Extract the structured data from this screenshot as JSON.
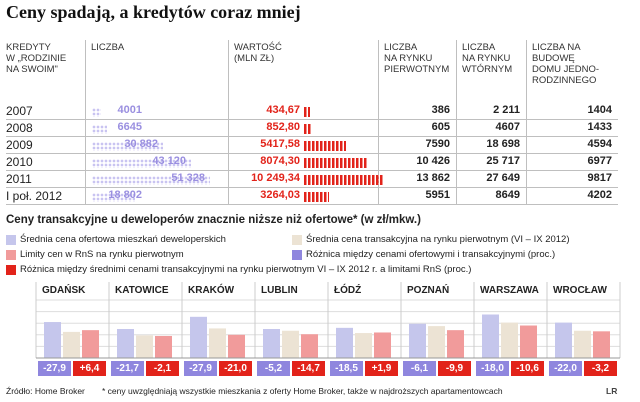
{
  "title": "Ceny spadają, a kredytów coraz mniej",
  "table": {
    "headers": {
      "kredyty": "KREDYTY\nW „RODZINIE\nNA SWOIM\"",
      "liczba": "LICZBA",
      "wartosc": "WARTOŚĆ\n(MLN ZŁ)",
      "pierwotny": "LICZBA\nNA RYNKU\nPIERWOTNYM",
      "wtorny": "LICZBA\nNA RYNKU\nWTÓRNYM",
      "budowa": "LICZBA NA\nBUDOWĘ\nDOMU JEDNO-\nRODZINNEGO"
    },
    "rows": [
      {
        "label": "2007",
        "liczba": "4001",
        "wartosc": "434,67",
        "pierwotny": "386",
        "wtorny": "2 211",
        "budowa": "1404"
      },
      {
        "label": "2008",
        "liczba": "6645",
        "wartosc": "852,80",
        "pierwotny": "605",
        "wtorny": "4607",
        "budowa": "1433"
      },
      {
        "label": "2009",
        "liczba": "30 882",
        "wartosc": "5417,58",
        "pierwotny": "7590",
        "wtorny": "18 698",
        "budowa": "4594"
      },
      {
        "label": "2010",
        "liczba": "43 120",
        "wartosc": "8074,30",
        "pierwotny": "10 426",
        "wtorny": "25 717",
        "budowa": "6977"
      },
      {
        "label": "2011",
        "liczba": "51 328",
        "wartosc": "10 249,34",
        "pierwotny": "13 862",
        "wtorny": "27 649",
        "budowa": "9817"
      },
      {
        "label": "I poł. 2012",
        "liczba": "18 802",
        "wartosc": "3264,03",
        "pierwotny": "5951",
        "wtorny": "8649",
        "budowa": "4202"
      }
    ]
  },
  "chart_data": {
    "type": "bar",
    "title": "Ceny transakcyjne u deweloperów znacznie niższe niż ofertowe* (w zł/mkw.)",
    "categories": [
      "GDAŃSK",
      "KATOWICE",
      "KRAKÓW",
      "LUBLIN",
      "ŁÓDŹ",
      "POZNAŃ",
      "WARSZAWA",
      "WROCŁAW"
    ],
    "ylim": [
      0,
      10000
    ],
    "grid": true,
    "series": [
      {
        "name": "Średnia cena ofertowa mieszkań deweloperskich",
        "color": "#c5c6ec",
        "values": [
          6200,
          5000,
          7100,
          5000,
          5200,
          5900,
          7500,
          6100
        ]
      },
      {
        "name": "Średnia cena transakcyjna na rynku pierwotnym (VI – IX 2012)",
        "color": "#ece3d4",
        "values": [
          4500,
          3900,
          5100,
          4700,
          4300,
          5500,
          6100,
          4700
        ]
      },
      {
        "name": "Limity cen w RnS na rynku pierwotnym",
        "color": "#f19b9b",
        "values": [
          4800,
          3800,
          4000,
          4100,
          4400,
          4800,
          5600,
          4600
        ]
      }
    ],
    "differences": {
      "offer_vs_transaction": {
        "name": "Różnica między cenami ofertowymi i transakcyjnymi (proc.)",
        "color": "#8f86de",
        "values": [
          "-27,9",
          "-21,7",
          "-27,9",
          "-5,2",
          "-18,5",
          "-6,1",
          "-18,0",
          "-22,0"
        ]
      },
      "transaction_vs_limit": {
        "name": "Różnica między średnimi cenami transakcyjnymi na rynku pierwotnym VI – IX 2012 r. a limitami RnS  (proc.)",
        "color": "#e2231a",
        "values": [
          "+6,4",
          "-2,1",
          "-21,0",
          "-14,7",
          "+1,9",
          "-9,9",
          "-10,6",
          "-3,2"
        ]
      }
    }
  },
  "footer": {
    "source": "Źródło: Home Broker",
    "note": "* ceny uwzględniają wszystkie mieszkania z oferty Home Broker, także w najdroższych apartamentowcach",
    "logo": "LR"
  },
  "colors": {
    "accent_purple": "#9a8fe0",
    "accent_red": "#e2231a"
  }
}
